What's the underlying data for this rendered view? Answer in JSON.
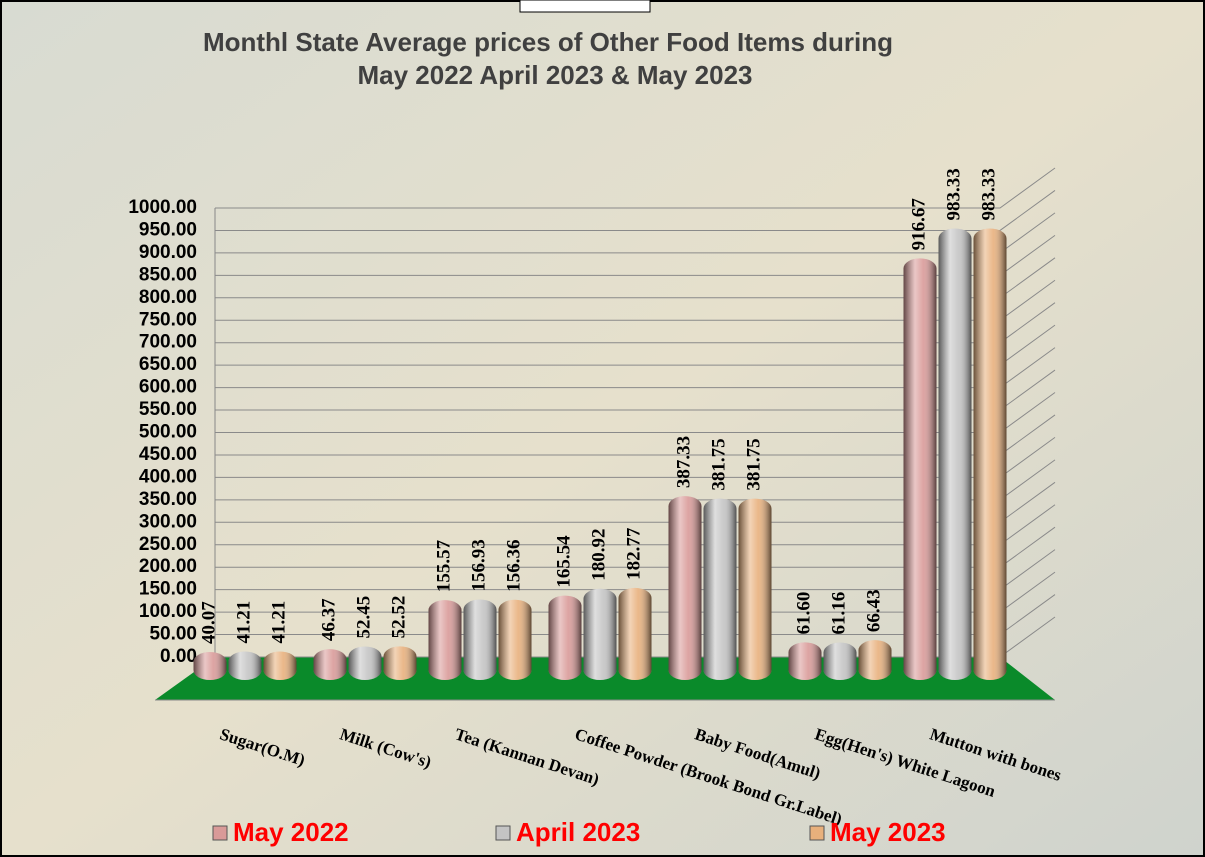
{
  "chart_data": {
    "type": "bar",
    "title": [
      "Monthl State Average prices of Other Food Items during",
      "May 2022  April 2023  & May 2023"
    ],
    "categories": [
      "Sugar(O.M)",
      "Milk  (Cow's)",
      "Tea (Kannan Devan)",
      "Coffee Powder (Brook Bond Gr.Label)",
      "Baby Food(Amul)",
      "Egg(Hen's) White Lagoon",
      "Mutton with  bones"
    ],
    "series": [
      {
        "name": "May 2022",
        "color": "#d99a98",
        "values": [
          40.07,
          46.37,
          155.57,
          165.54,
          387.33,
          61.6,
          916.67
        ],
        "value_labels": [
          "40.07",
          "46.37",
          "155.57",
          "165.54",
          "387.33",
          "61.60",
          "916.67"
        ]
      },
      {
        "name": "April 2023",
        "color": "#c4c4c4",
        "values": [
          41.21,
          52.45,
          156.93,
          180.92,
          381.75,
          61.16,
          983.33
        ],
        "value_labels": [
          "41.21",
          "52.45",
          "156.93",
          "180.92",
          "381.75",
          "61.16",
          "983.33"
        ]
      },
      {
        "name": "May 2023",
        "color": "#e8b07c",
        "values": [
          41.21,
          52.52,
          156.36,
          182.77,
          381.75,
          66.43,
          983.33
        ],
        "value_labels": [
          "41.21",
          "52.52",
          "156.36",
          "182.77",
          "381.75",
          "66.43",
          "983.33"
        ]
      }
    ],
    "ylim": [
      0,
      1000
    ],
    "yticks": [
      {
        "value": 0,
        "label": "0.00"
      },
      {
        "value": 50,
        "label": "50.00"
      },
      {
        "value": 100,
        "label": "100.00"
      },
      {
        "value": 150,
        "label": "150.00"
      },
      {
        "value": 200,
        "label": "200.00"
      },
      {
        "value": 250,
        "label": "250.00"
      },
      {
        "value": 300,
        "label": "300.00"
      },
      {
        "value": 350,
        "label": "350.00"
      },
      {
        "value": 400,
        "label": "400.00"
      },
      {
        "value": 450,
        "label": "450.00"
      },
      {
        "value": 500,
        "label": "500.00"
      },
      {
        "value": 550,
        "label": "550.00"
      },
      {
        "value": 600,
        "label": "600.00"
      },
      {
        "value": 650,
        "label": "650.00"
      },
      {
        "value": 700,
        "label": "700.00"
      },
      {
        "value": 750,
        "label": "750.00"
      },
      {
        "value": 800,
        "label": "800.00"
      },
      {
        "value": 850,
        "label": "850.00"
      },
      {
        "value": 900,
        "label": "900.00"
      },
      {
        "value": 950,
        "label": "950.00"
      },
      {
        "value": 1000,
        "label": "1000.00"
      }
    ],
    "grid": true,
    "legend": "bottom"
  }
}
